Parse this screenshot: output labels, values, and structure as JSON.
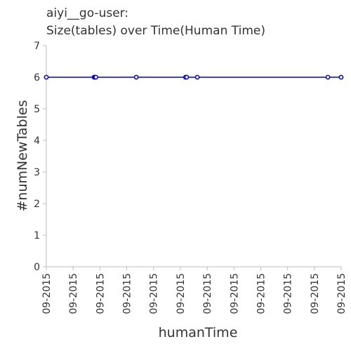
{
  "chart_data": {
    "type": "line",
    "title": [
      "aiyi__go-user:",
      "Size(tables) over Time(Human Time)"
    ],
    "xlabel": "humanTime",
    "ylabel": "#numNewTables",
    "ylim": [
      0,
      7
    ],
    "yticks": [
      "0",
      "1",
      "2",
      "3",
      "4",
      "5",
      "6",
      "7"
    ],
    "xticks": [
      "09-2015",
      "09-2015",
      "09-2015",
      "09-2015",
      "09-2015",
      "09-2015",
      "09-2015",
      "09-2015",
      "09-2015",
      "09-2015",
      "09-2015",
      "09-2015"
    ],
    "grid": false,
    "line_color": "#0000cc",
    "series": [
      {
        "x": [
          0,
          0.162,
          0.165,
          0.168,
          0.305,
          0.472,
          0.476,
          0.512,
          0.955,
          1.0
        ],
        "values": [
          6,
          6,
          6,
          6,
          6,
          6,
          6,
          6,
          6,
          6
        ]
      }
    ]
  }
}
